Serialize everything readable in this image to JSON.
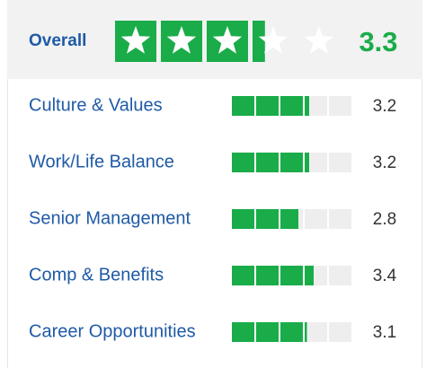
{
  "overall": {
    "label": "Overall",
    "rating": 3.3
  },
  "ratings": [
    {
      "label": "Culture & Values",
      "rating": 3.2
    },
    {
      "label": "Work/Life Balance",
      "rating": 3.2
    },
    {
      "label": "Senior Management",
      "rating": 2.8
    },
    {
      "label": "Comp & Benefits",
      "rating": 3.4
    },
    {
      "label": "Career Opportunities",
      "rating": 3.1
    }
  ]
}
